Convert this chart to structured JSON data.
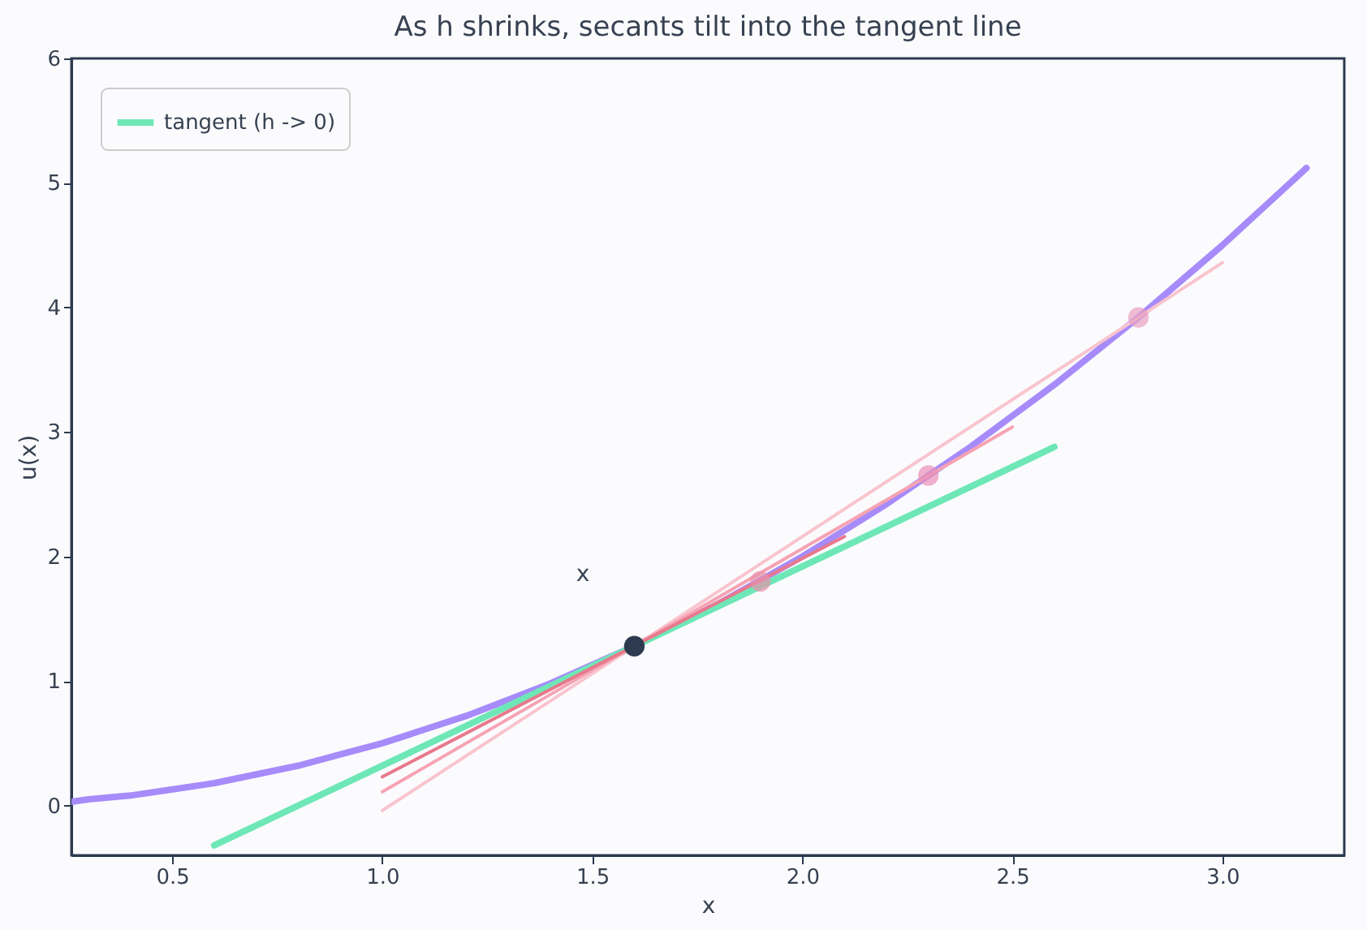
{
  "chart_data": {
    "type": "line",
    "title": "As h shrinks, secants tilt into the tangent line",
    "xlabel": "x",
    "ylabel": "u(x)",
    "xlim": [
      0.26,
      3.29
    ],
    "ylim": [
      -0.4,
      6
    ],
    "xticks": [
      0.5,
      {
        "value": 1,
        "label": "1.0"
      },
      1.5,
      {
        "value": 2,
        "label": "2.0"
      },
      2.5,
      {
        "value": 3,
        "label": "3.0"
      }
    ],
    "yticks": [
      0,
      1,
      2,
      3,
      4,
      5,
      6
    ],
    "grid": false,
    "legend": "top left",
    "line_style": "solid",
    "annotations": [
      "x"
    ],
    "series": [
      {
        "color": "#a78bfa",
        "x": [
          0.26,
          0.3,
          0.4,
          0.5,
          0.6,
          0.7,
          0.8,
          0.9,
          1.0,
          1.1,
          1.2,
          1.3,
          1.4,
          1.5,
          1.6,
          1.7,
          1.8,
          1.9,
          2.0,
          2.1,
          2.2,
          2.3,
          2.4,
          2.5,
          2.6,
          2.7,
          2.8,
          2.9,
          3.0,
          3.1,
          3.2
        ],
        "values": [
          0.03,
          0.05,
          0.08,
          0.13,
          0.18,
          0.25,
          0.32,
          0.41,
          0.5,
          0.61,
          0.72,
          0.85,
          0.98,
          1.13,
          1.28,
          1.45,
          1.62,
          1.81,
          2.0,
          2.21,
          2.42,
          2.65,
          2.88,
          3.13,
          3.38,
          3.65,
          3.92,
          4.21,
          4.5,
          4.81,
          5.12
        ]
      },
      {
        "name": "tangent (h -> 0)",
        "color": "#6ee7b7",
        "x": [
          0.6,
          2.6
        ],
        "values": [
          -0.32,
          2.88
        ]
      },
      {
        "color": "#f9c4ce",
        "x": [
          1.0,
          3.0
        ],
        "values": [
          -0.04,
          4.36
        ]
      },
      {
        "color": "#f6a3b3",
        "x": [
          1.0,
          2.5
        ],
        "values": [
          0.11,
          3.04
        ]
      },
      {
        "color": "#e8798c",
        "x": [
          1.0,
          2.1
        ],
        "values": [
          0.23,
          2.16
        ]
      },
      {
        "type": "scatter",
        "marker": "circle",
        "colors": [
          "#e8a0c0",
          "#e890b8",
          "#e891ab"
        ],
        "x": [
          2.8,
          2.3,
          1.9
        ],
        "values": [
          3.92,
          2.65,
          1.8
        ]
      },
      {
        "type": "scatter",
        "marker": "circle",
        "color": "#2d3a4f",
        "x": [
          1.6
        ],
        "values": [
          1.28
        ]
      }
    ]
  }
}
